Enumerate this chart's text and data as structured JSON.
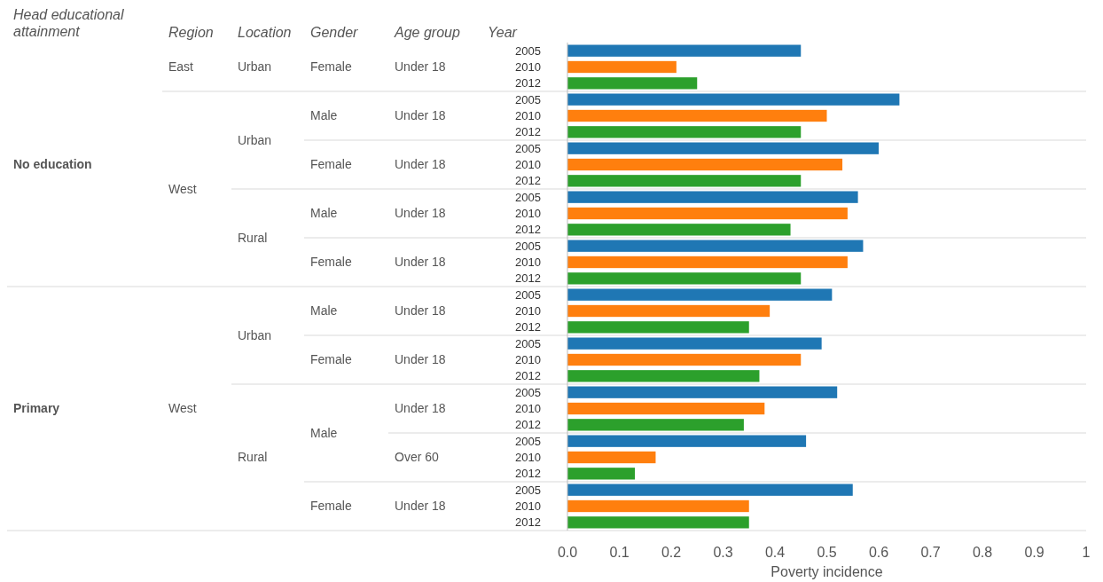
{
  "chart_data": {
    "type": "bar",
    "orientation": "horizontal",
    "xlabel": "Poverty incidence",
    "ylabel": "Year",
    "categories": [
      "2005",
      "2010",
      "2012",
      "2005",
      "2010",
      "2012",
      "2005",
      "2010",
      "2012",
      "2005",
      "2010",
      "2012",
      "2005",
      "2010",
      "2012",
      "2005",
      "2010",
      "2012",
      "2005",
      "2010",
      "2012",
      "2005",
      "2010",
      "2012",
      "2005",
      "2010",
      "2012",
      "2005",
      "2010",
      "2012"
    ],
    "values": [
      0.45,
      0.21,
      0.25,
      0.64,
      0.5,
      0.45,
      0.6,
      0.53,
      0.45,
      0.56,
      0.54,
      0.43,
      0.57,
      0.54,
      0.45,
      0.51,
      0.39,
      0.35,
      0.49,
      0.45,
      0.37,
      0.52,
      0.38,
      0.34,
      0.46,
      0.17,
      0.13,
      0.55,
      0.35,
      0.35
    ],
    "colors": [
      "#1f77b4",
      "#ff7f0e",
      "#2ca02c",
      "#1f77b4",
      "#ff7f0e",
      "#2ca02c",
      "#1f77b4",
      "#ff7f0e",
      "#2ca02c",
      "#1f77b4",
      "#ff7f0e",
      "#2ca02c",
      "#1f77b4",
      "#ff7f0e",
      "#2ca02c",
      "#1f77b4",
      "#ff7f0e",
      "#2ca02c",
      "#1f77b4",
      "#ff7f0e",
      "#2ca02c",
      "#1f77b4",
      "#ff7f0e",
      "#2ca02c",
      "#1f77b4",
      "#ff7f0e",
      "#2ca02c",
      "#1f77b4",
      "#ff7f0e",
      "#2ca02c"
    ],
    "xlim": [
      0,
      1
    ],
    "xticks": [
      {
        "value": 0,
        "label": "0.0"
      },
      0.1,
      0.2,
      0.3,
      0.4,
      0.5,
      0.6,
      0.7,
      0.8,
      0.9,
      1
    ],
    "grid": false,
    "annotations": [
      "Head educational attainment",
      "Region",
      "Location",
      "Gender",
      "Age group",
      "No education",
      "Primary",
      "East",
      "West",
      "West",
      "Urban",
      "Urban",
      "Rural",
      "Urban",
      "Rural",
      "Female",
      "Male",
      "Female",
      "Male",
      "Female",
      "Male",
      "Female",
      "Male",
      "Female",
      "Under 18",
      "Under 18",
      "Under 18",
      "Under 18",
      "Under 18",
      "Under 18",
      "Under 18",
      "Under 18",
      "Over 60",
      "Under 18"
    ]
  }
}
